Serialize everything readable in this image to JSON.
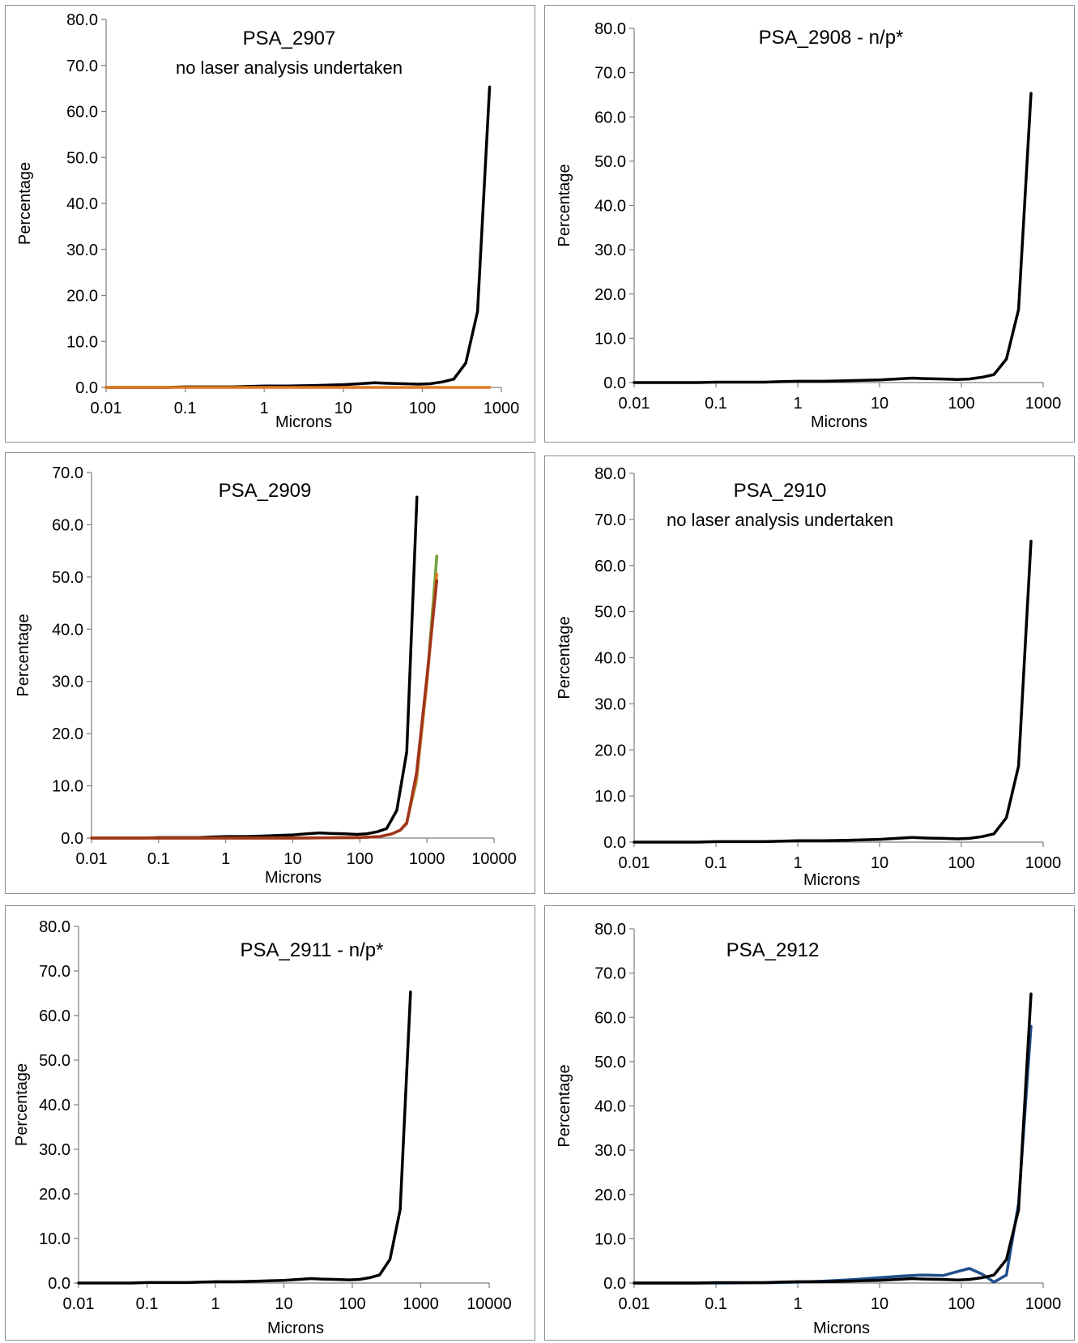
{
  "chart_data": [
    {
      "type": "line",
      "title": "PSA_2907",
      "subtitle": "no laser analysis undertaken",
      "xlabel": "Microns",
      "ylabel": "Percentage",
      "xscale": "log",
      "xlim": [
        0.01,
        1000
      ],
      "ylim": [
        0,
        80
      ],
      "xticks": [
        "0.01",
        "0.1",
        "1",
        "10",
        "100",
        "1000"
      ],
      "yticks": [
        "0.0",
        "10.0",
        "20.0",
        "30.0",
        "40.0",
        "50.0",
        "60.0",
        "70.0",
        "80.0"
      ],
      "grid": false,
      "legend": "none",
      "series": [
        {
          "color": "#000000",
          "x": [
            0.01,
            0.02,
            0.04,
            0.06,
            0.1,
            0.2,
            0.4,
            0.6,
            1,
            2,
            4,
            6,
            10,
            16,
            25,
            35,
            60,
            90,
            125,
            180,
            250,
            355,
            500,
            710
          ],
          "y": [
            0.0,
            0.0,
            0.0,
            0.0,
            0.1,
            0.1,
            0.1,
            0.2,
            0.3,
            0.3,
            0.4,
            0.5,
            0.6,
            0.8,
            1.0,
            0.9,
            0.8,
            0.7,
            0.8,
            1.2,
            1.8,
            5.3,
            16.5,
            65.3
          ]
        },
        {
          "color": "#e07b1f",
          "x": [
            0.01,
            0.1,
            1,
            10,
            100,
            500,
            710
          ],
          "y": [
            0.0,
            0.0,
            0.0,
            0.0,
            0.0,
            0.0,
            0.0
          ]
        }
      ]
    },
    {
      "type": "line",
      "title": "PSA_2908 - n/p*",
      "xlabel": "Microns",
      "ylabel": "Percentage",
      "xscale": "log",
      "xlim": [
        0.01,
        1000
      ],
      "ylim": [
        0,
        80
      ],
      "xticks": [
        "0.01",
        "0.1",
        "1",
        "10",
        "100",
        "1000"
      ],
      "yticks": [
        "0.0",
        "10.0",
        "20.0",
        "30.0",
        "40.0",
        "50.0",
        "60.0",
        "70.0",
        "80.0"
      ],
      "grid": false,
      "legend": "none",
      "series": [
        {
          "color": "#000000",
          "x": [
            0.01,
            0.02,
            0.04,
            0.06,
            0.1,
            0.2,
            0.4,
            0.6,
            1,
            2,
            4,
            6,
            10,
            16,
            25,
            35,
            60,
            90,
            125,
            180,
            250,
            355,
            500,
            710
          ],
          "y": [
            0.0,
            0.0,
            0.0,
            0.0,
            0.1,
            0.1,
            0.1,
            0.2,
            0.3,
            0.3,
            0.4,
            0.5,
            0.6,
            0.8,
            1.0,
            0.9,
            0.8,
            0.7,
            0.8,
            1.2,
            1.8,
            5.3,
            16.5,
            65.3
          ]
        }
      ]
    },
    {
      "type": "line",
      "title": "PSA_2909",
      "xlabel": "Microns",
      "ylabel": "Percentage",
      "xscale": "log",
      "xlim": [
        0.01,
        10000
      ],
      "ylim": [
        0,
        70
      ],
      "xticks": [
        "0.01",
        "0.1",
        "1",
        "10",
        "100",
        "1000",
        "10000"
      ],
      "yticks": [
        "0.0",
        "10.0",
        "20.0",
        "30.0",
        "40.0",
        "50.0",
        "60.0",
        "70.0"
      ],
      "grid": false,
      "legend": "none",
      "series": [
        {
          "color": "#000000",
          "x": [
            0.01,
            0.02,
            0.04,
            0.06,
            0.1,
            0.2,
            0.4,
            0.6,
            1,
            2,
            4,
            6,
            10,
            16,
            25,
            35,
            60,
            90,
            125,
            180,
            250,
            355,
            500,
            710
          ],
          "y": [
            0.0,
            0.0,
            0.0,
            0.0,
            0.1,
            0.1,
            0.1,
            0.2,
            0.3,
            0.3,
            0.4,
            0.5,
            0.6,
            0.8,
            1.0,
            0.9,
            0.8,
            0.7,
            0.8,
            1.2,
            1.8,
            5.3,
            16.5,
            65.3
          ]
        },
        {
          "color": "#70a03c",
          "x": [
            0.01,
            0.1,
            1,
            10,
            100,
            200,
            300,
            400,
            500,
            700,
            1000,
            1400
          ],
          "y": [
            0.0,
            0.0,
            0.0,
            0.0,
            0.1,
            0.3,
            0.8,
            1.5,
            3.0,
            11.0,
            30.0,
            54.0
          ]
        },
        {
          "color": "#e07b1f",
          "x": [
            0.01,
            0.1,
            1,
            10,
            100,
            200,
            300,
            400,
            500,
            700,
            1000,
            1400
          ],
          "y": [
            0.0,
            0.0,
            0.0,
            0.0,
            0.1,
            0.3,
            0.8,
            1.5,
            3.0,
            11.5,
            30.0,
            50.5
          ]
        },
        {
          "color": "#a0341d",
          "x": [
            0.01,
            0.1,
            1,
            10,
            100,
            200,
            300,
            400,
            500,
            700,
            1000,
            1400
          ],
          "y": [
            0.0,
            0.0,
            0.0,
            0.0,
            0.1,
            0.3,
            0.8,
            1.5,
            2.8,
            12.5,
            31.0,
            49.3
          ]
        }
      ]
    },
    {
      "type": "line",
      "title": "PSA_2910",
      "subtitle": "no laser analysis undertaken",
      "xlabel": "Microns",
      "ylabel": "Percentage",
      "xscale": "log",
      "xlim": [
        0.01,
        1000
      ],
      "ylim": [
        0,
        80
      ],
      "xticks": [
        "0.01",
        "0.1",
        "1",
        "10",
        "100",
        "1000"
      ],
      "yticks": [
        "0.0",
        "10.0",
        "20.0",
        "30.0",
        "40.0",
        "50.0",
        "60.0",
        "70.0",
        "80.0"
      ],
      "grid": false,
      "legend": "none",
      "series": [
        {
          "color": "#000000",
          "x": [
            0.01,
            0.02,
            0.04,
            0.06,
            0.1,
            0.2,
            0.4,
            0.6,
            1,
            2,
            4,
            6,
            10,
            16,
            25,
            35,
            60,
            90,
            125,
            180,
            250,
            355,
            500,
            710
          ],
          "y": [
            0.0,
            0.0,
            0.0,
            0.0,
            0.1,
            0.1,
            0.1,
            0.2,
            0.3,
            0.3,
            0.4,
            0.5,
            0.6,
            0.8,
            1.0,
            0.9,
            0.8,
            0.7,
            0.8,
            1.2,
            1.8,
            5.3,
            16.5,
            65.3
          ]
        }
      ]
    },
    {
      "type": "line",
      "title": "PSA_2911 - n/p*",
      "xlabel": "Microns",
      "ylabel": "Percentage",
      "xscale": "log",
      "xlim": [
        0.01,
        10000
      ],
      "ylim": [
        0,
        80
      ],
      "xticks": [
        "0.01",
        "0.1",
        "1",
        "10",
        "100",
        "1000",
        "10000"
      ],
      "yticks": [
        "0.0",
        "10.0",
        "20.0",
        "30.0",
        "40.0",
        "50.0",
        "60.0",
        "70.0",
        "80.0"
      ],
      "grid": false,
      "legend": "none",
      "series": [
        {
          "color": "#000000",
          "x": [
            0.01,
            0.02,
            0.04,
            0.06,
            0.1,
            0.2,
            0.4,
            0.6,
            1,
            2,
            4,
            6,
            10,
            16,
            25,
            35,
            60,
            90,
            125,
            180,
            250,
            355,
            500,
            710
          ],
          "y": [
            0.0,
            0.0,
            0.0,
            0.0,
            0.1,
            0.1,
            0.1,
            0.2,
            0.3,
            0.3,
            0.4,
            0.5,
            0.6,
            0.8,
            1.0,
            0.9,
            0.8,
            0.7,
            0.8,
            1.2,
            1.8,
            5.3,
            16.5,
            65.3
          ]
        }
      ]
    },
    {
      "type": "line",
      "title": "PSA_2912",
      "xlabel": "Microns",
      "ylabel": "Percentage",
      "xscale": "log",
      "xlim": [
        0.01,
        1000
      ],
      "ylim": [
        0,
        80
      ],
      "xticks": [
        "0.01",
        "0.1",
        "1",
        "10",
        "100",
        "1000"
      ],
      "yticks": [
        "0.0",
        "10.0",
        "20.0",
        "30.0",
        "40.0",
        "50.0",
        "60.0",
        "70.0",
        "80.0"
      ],
      "grid": false,
      "legend": "none",
      "series": [
        {
          "color": "#1f4e8c",
          "x": [
            0.01,
            0.1,
            0.5,
            1,
            2,
            5,
            10,
            20,
            30,
            40,
            60,
            90,
            125,
            180,
            250,
            355,
            500,
            710
          ],
          "y": [
            0.0,
            0.0,
            0.1,
            0.2,
            0.4,
            0.8,
            1.2,
            1.6,
            1.8,
            1.8,
            1.7,
            2.6,
            3.3,
            2.0,
            0.2,
            1.8,
            18.0,
            58.0
          ]
        },
        {
          "color": "#000000",
          "x": [
            0.01,
            0.02,
            0.04,
            0.06,
            0.1,
            0.2,
            0.4,
            0.6,
            1,
            2,
            4,
            6,
            10,
            16,
            25,
            35,
            60,
            90,
            125,
            180,
            250,
            355,
            500,
            710
          ],
          "y": [
            0.0,
            0.0,
            0.0,
            0.0,
            0.1,
            0.1,
            0.1,
            0.2,
            0.3,
            0.3,
            0.4,
            0.5,
            0.6,
            0.8,
            1.0,
            0.9,
            0.8,
            0.7,
            0.8,
            1.2,
            1.8,
            5.3,
            16.5,
            65.3
          ]
        }
      ]
    }
  ]
}
